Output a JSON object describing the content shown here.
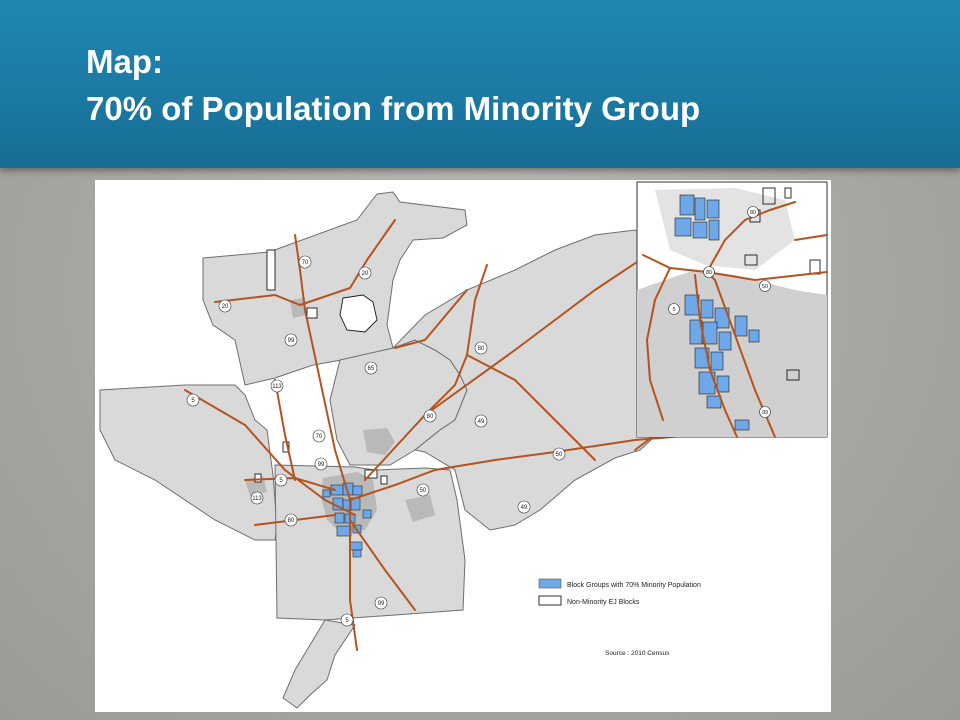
{
  "slide": {
    "title_line1": "Map:",
    "title_line2": "70% of Population from Minority Group"
  },
  "map": {
    "legend": {
      "items": [
        {
          "label": "Block Groups with 70% Minority Population",
          "swatch_color": "#6fa8e8"
        },
        {
          "label": "Non-Minority EJ Blocks",
          "swatch_color": "#ffffff"
        }
      ]
    },
    "source_note": "Source : 2010 Census",
    "highway_shields": [
      "70",
      "20",
      "20",
      "99",
      "113",
      "65",
      "80",
      "80",
      "5",
      "70",
      "99",
      "5",
      "113",
      "80",
      "50",
      "49",
      "50",
      "49",
      "99",
      "5"
    ],
    "inset_shields": [
      "80",
      "80",
      "50",
      "5",
      "99"
    ],
    "colors": {
      "header": "#1b7aa4",
      "county_fill": "#d9d9d9",
      "county_border": "#6e6e6e",
      "roads": "#b5531f",
      "minority_blocks": "#6fa8e8",
      "urban_areas": "#b9b9b9"
    }
  }
}
